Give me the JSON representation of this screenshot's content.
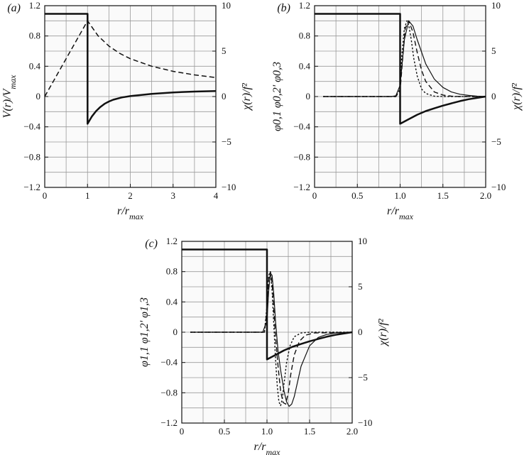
{
  "chart_data": [
    {
      "type": "line",
      "panel_label": "(a)",
      "xlabel": "r/r_max",
      "ylabel": "V(r)/V_max",
      "y2label": "χ(r)/f²",
      "xlim": [
        0,
        4
      ],
      "ylim": [
        -1.2,
        1.2
      ],
      "y2lim": [
        -10,
        10
      ],
      "xticks": [
        "0",
        "1",
        "2",
        "3",
        "4"
      ],
      "yticks": [
        "1.2",
        "0.8",
        "0.4",
        "0",
        "−0.4",
        "−0.8",
        "−1.2"
      ],
      "y2ticks": [
        "10",
        "5",
        "0",
        "−5",
        "−10"
      ],
      "grid": true,
      "series": [
        {
          "axis": "left",
          "style": "dashed",
          "width": 1.5,
          "x": [
            0,
            0.25,
            0.5,
            0.75,
            1,
            1.25,
            1.5,
            1.75,
            2,
            2.5,
            3,
            3.5,
            4
          ],
          "y": [
            0,
            0.25,
            0.5,
            0.75,
            1.0,
            0.8,
            0.667,
            0.571,
            0.5,
            0.4,
            0.333,
            0.286,
            0.25
          ]
        },
        {
          "axis": "right",
          "style": "solid",
          "width": 2.5,
          "x": [
            0,
            0.5,
            1,
            1.0,
            1.05,
            1.1,
            1.2,
            1.3,
            1.4,
            1.5,
            1.6,
            1.8,
            2,
            2.5,
            3,
            3.5,
            4
          ],
          "y": [
            9.1,
            9.1,
            9.1,
            -3.0,
            -2.6,
            -2.2,
            -1.6,
            -1.15,
            -0.8,
            -0.55,
            -0.35,
            -0.1,
            0.05,
            0.3,
            0.45,
            0.55,
            0.6
          ]
        }
      ]
    },
    {
      "type": "line",
      "panel_label": "(b)",
      "xlabel": "r/r_max",
      "ylabel": "φ0,1 φ0,2' φ0,3",
      "y2label": "χ(r)/f²",
      "xlim": [
        0,
        2
      ],
      "ylim": [
        -1.2,
        1.2
      ],
      "y2lim": [
        -10,
        10
      ],
      "xticks": [
        "0",
        "0.5",
        "1.0",
        "1.5",
        "2.0"
      ],
      "yticks": [
        "1.2",
        "0.8",
        "0.4",
        "0",
        "−0.4",
        "−0.8",
        "−1.2"
      ],
      "y2ticks": [
        "10",
        "5",
        "0",
        "−5",
        "−10"
      ],
      "grid": true,
      "series": [
        {
          "axis": "right",
          "style": "solid",
          "width": 2.5,
          "x": [
            0,
            0.5,
            1,
            1.0,
            1.1,
            1.2,
            1.3,
            1.4,
            1.5,
            1.6,
            1.7,
            1.8,
            1.9,
            2.0
          ],
          "y": [
            9.1,
            9.1,
            9.1,
            -3.0,
            -2.5,
            -2.0,
            -1.6,
            -1.3,
            -1.0,
            -0.75,
            -0.5,
            -0.3,
            -0.15,
            0
          ]
        },
        {
          "axis": "left",
          "style": "solid",
          "width": 1.2,
          "x": [
            0.1,
            0.9,
            0.95,
            1.0,
            1.05,
            1.1,
            1.15,
            1.2,
            1.3,
            1.4,
            1.5,
            1.6,
            1.7,
            1.8,
            1.9,
            2.0
          ],
          "y": [
            0,
            0,
            0.01,
            0.15,
            0.75,
            1.0,
            0.93,
            0.75,
            0.43,
            0.23,
            0.12,
            0.06,
            0.03,
            0.015,
            0.005,
            0
          ]
        },
        {
          "axis": "left",
          "style": "dashed",
          "width": 1.4,
          "x": [
            0.1,
            0.95,
            1.0,
            1.03,
            1.06,
            1.1,
            1.15,
            1.2,
            1.25,
            1.3,
            1.4,
            1.5,
            1.6,
            1.7,
            2.0
          ],
          "y": [
            0,
            0,
            0.08,
            0.5,
            0.9,
            1.0,
            0.85,
            0.58,
            0.35,
            0.2,
            0.06,
            0.02,
            0.005,
            0,
            0
          ]
        },
        {
          "axis": "left",
          "style": "dotted",
          "width": 1.4,
          "x": [
            0.1,
            0.95,
            1.0,
            1.02,
            1.05,
            1.08,
            1.1,
            1.13,
            1.16,
            1.2,
            1.25,
            1.3,
            1.4,
            1.5,
            2.0
          ],
          "y": [
            0,
            0,
            0.1,
            0.55,
            0.9,
            1.0,
            0.95,
            0.75,
            0.5,
            0.27,
            0.1,
            0.04,
            0.005,
            0,
            0
          ]
        }
      ]
    },
    {
      "type": "line",
      "panel_label": "(c)",
      "xlabel": "r/r_max",
      "ylabel": "φ1,1 φ1,2' φ1,3",
      "y2label": "χ(r)/f²",
      "xlim": [
        0,
        2
      ],
      "ylim": [
        -1.2,
        1.2
      ],
      "y2lim": [
        -10,
        10
      ],
      "xticks": [
        "0",
        "0.5",
        "1.0",
        "1.5",
        "2.0"
      ],
      "yticks": [
        "1.2",
        "0.8",
        "0.4",
        "0",
        "−0.4",
        "−0.8",
        "−1.2"
      ],
      "y2ticks": [
        "10",
        "5",
        "0",
        "−5",
        "−10"
      ],
      "grid": true,
      "series": [
        {
          "axis": "right",
          "style": "solid",
          "width": 2.5,
          "x": [
            0,
            0.5,
            1,
            1.0,
            1.1,
            1.2,
            1.3,
            1.4,
            1.5,
            1.6,
            1.7,
            1.8,
            1.9,
            2.0
          ],
          "y": [
            9.1,
            9.1,
            9.1,
            -3.0,
            -2.5,
            -2.0,
            -1.6,
            -1.3,
            -1.0,
            -0.75,
            -0.5,
            -0.3,
            -0.15,
            0
          ]
        },
        {
          "axis": "left",
          "style": "solid",
          "width": 1.2,
          "x": [
            0.1,
            0.95,
            1.0,
            1.02,
            1.04,
            1.06,
            1.08,
            1.1,
            1.13,
            1.16,
            1.2,
            1.23,
            1.26,
            1.29,
            1.32,
            1.35,
            1.4,
            1.5,
            1.6,
            1.7,
            1.8,
            2.0
          ],
          "y": [
            0,
            0,
            0.15,
            0.55,
            0.78,
            0.75,
            0.5,
            0.15,
            -0.25,
            -0.5,
            -0.78,
            -0.92,
            -0.98,
            -0.95,
            -0.85,
            -0.7,
            -0.45,
            -0.18,
            -0.07,
            -0.03,
            -0.01,
            0
          ]
        },
        {
          "axis": "left",
          "style": "dashed",
          "width": 1.4,
          "x": [
            0.1,
            0.97,
            1.0,
            1.02,
            1.04,
            1.06,
            1.08,
            1.1,
            1.13,
            1.16,
            1.19,
            1.22,
            1.25,
            1.28,
            1.32,
            1.38,
            1.45,
            1.55,
            2.0
          ],
          "y": [
            0,
            0,
            0.3,
            0.7,
            0.8,
            0.65,
            0.3,
            -0.05,
            -0.45,
            -0.78,
            -0.93,
            -0.95,
            -0.8,
            -0.55,
            -0.3,
            -0.12,
            -0.04,
            -0.01,
            0
          ]
        },
        {
          "axis": "left",
          "style": "dotted",
          "width": 1.4,
          "x": [
            0.1,
            0.97,
            1.0,
            1.02,
            1.04,
            1.06,
            1.08,
            1.1,
            1.12,
            1.14,
            1.16,
            1.18,
            1.2,
            1.23,
            1.27,
            1.32,
            1.4,
            1.5,
            2.0
          ],
          "y": [
            0,
            0,
            0.35,
            0.75,
            0.8,
            0.55,
            0.1,
            -0.35,
            -0.7,
            -0.92,
            -0.97,
            -0.88,
            -0.68,
            -0.4,
            -0.18,
            -0.06,
            -0.01,
            0,
            0
          ]
        }
      ]
    }
  ]
}
